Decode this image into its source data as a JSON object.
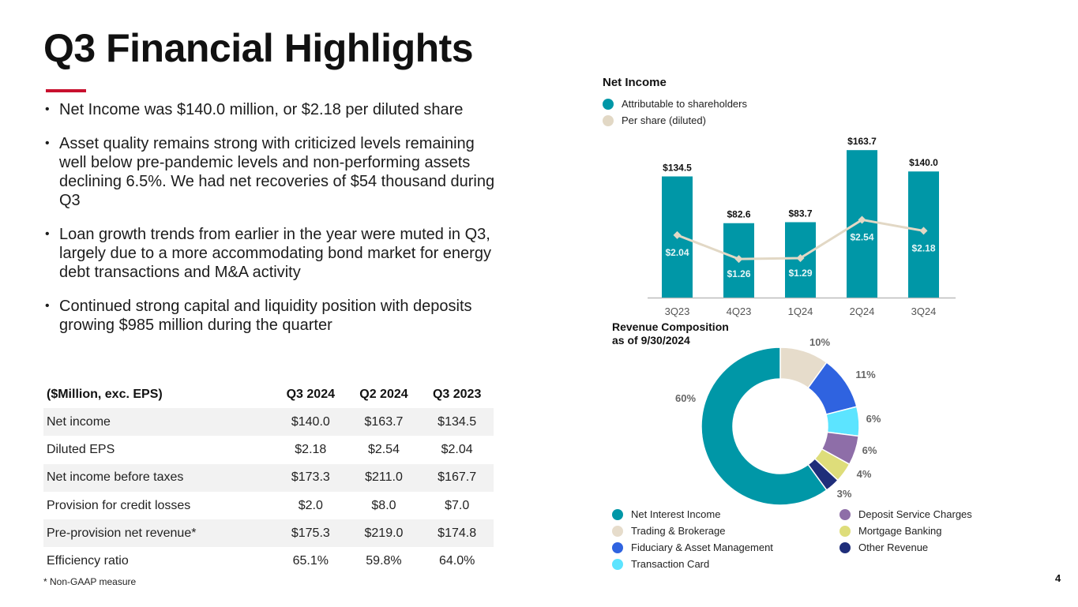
{
  "title": "Q3 Financial Highlights",
  "bullets": [
    "Net Income was $140.0 million, or $2.18 per diluted share",
    "Asset quality remains strong with criticized levels remaining well below pre-pandemic levels and non-performing assets declining 6.5%. We had net recoveries of $54 thousand during Q3",
    "Loan growth trends from earlier in the year were muted in Q3, largely due to a more accommodating bond market for energy debt transactions and M&A activity",
    "Continued strong capital and liquidity position with deposits growing $985 million during the quarter"
  ],
  "table": {
    "headers": [
      "($Million, exc. EPS)",
      "Q3 2024",
      "Q2 2024",
      "Q3 2023"
    ],
    "rows": [
      [
        "Net income",
        "$140.0",
        "$163.7",
        "$134.5"
      ],
      [
        "Diluted EPS",
        "$2.18",
        "$2.54",
        "$2.04"
      ],
      [
        "Net income before taxes",
        "$173.3",
        "$211.0",
        "$167.7"
      ],
      [
        "Provision for credit losses",
        "$2.0",
        "$8.0",
        "$7.0"
      ],
      [
        "Pre-provision net revenue*",
        "$175.3",
        "$219.0",
        "$174.8"
      ],
      [
        "Efficiency ratio",
        "65.1%",
        "59.8%",
        "64.0%"
      ]
    ]
  },
  "footnote": "*  Non-GAAP measure",
  "page_number": "4",
  "net_income_chart": {
    "title": "Net Income",
    "legend": [
      "Attributable to shareholders",
      "Per share (diluted)"
    ]
  },
  "revenue_chart": {
    "title_line1": "Revenue Composition",
    "title_line2": "as of 9/30/2024"
  },
  "colors": {
    "teal": "#0097a7",
    "beige": "#e2d8c5",
    "accent_red": "#c8102e",
    "trading": "#e6dccb",
    "fiduciary": "#2f63e0",
    "transaction": "#5ce4ff",
    "deposit": "#8e6ea8",
    "mortgage": "#dedd7a",
    "other": "#1f2e7a"
  },
  "chart_data": [
    {
      "type": "bar",
      "title": "Net Income",
      "categories": [
        "3Q23",
        "4Q23",
        "1Q24",
        "2Q24",
        "3Q24"
      ],
      "series": [
        {
          "name": "Attributable to shareholders",
          "values": [
            134.5,
            82.6,
            83.7,
            163.7,
            140.0
          ],
          "labels": [
            "$134.5",
            "$82.6",
            "$83.7",
            "$163.7",
            "$140.0"
          ]
        },
        {
          "name": "Per share (diluted)",
          "type": "line",
          "values": [
            2.04,
            1.26,
            1.29,
            2.54,
            2.18
          ],
          "labels": [
            "$2.04",
            "$1.26",
            "$1.29",
            "$2.54",
            "$2.18"
          ]
        }
      ],
      "ylim": [
        0,
        170
      ],
      "ylim_secondary": [
        0,
        5
      ]
    },
    {
      "type": "pie",
      "title": "Revenue Composition as of 9/30/2024",
      "labels": [
        "Trading & Brokerage",
        "Fiduciary & Asset Management",
        "Transaction Card",
        "Deposit Service Charges",
        "Mortgage Banking",
        "Other Revenue",
        "Net Interest Income"
      ],
      "values": [
        10,
        11,
        6,
        6,
        4,
        3,
        60
      ],
      "value_labels": [
        "10%",
        "11%",
        "6%",
        "6%",
        "4%",
        "3%",
        "60%"
      ],
      "colors": [
        "#e6dccb",
        "#2f63e0",
        "#5ce4ff",
        "#8e6ea8",
        "#dedd7a",
        "#1f2e7a",
        "#0097a7"
      ],
      "legend": [
        [
          "Net Interest Income",
          "Trading & Brokerage",
          "Fiduciary & Asset Management",
          "Transaction Card"
        ],
        [
          "Deposit Service Charges",
          "Mortgage Banking",
          "Other Revenue"
        ]
      ],
      "legend_colors": [
        [
          "#0097a7",
          "#e6dccb",
          "#2f63e0",
          "#5ce4ff"
        ],
        [
          "#8e6ea8",
          "#dedd7a",
          "#1f2e7a"
        ]
      ]
    }
  ]
}
